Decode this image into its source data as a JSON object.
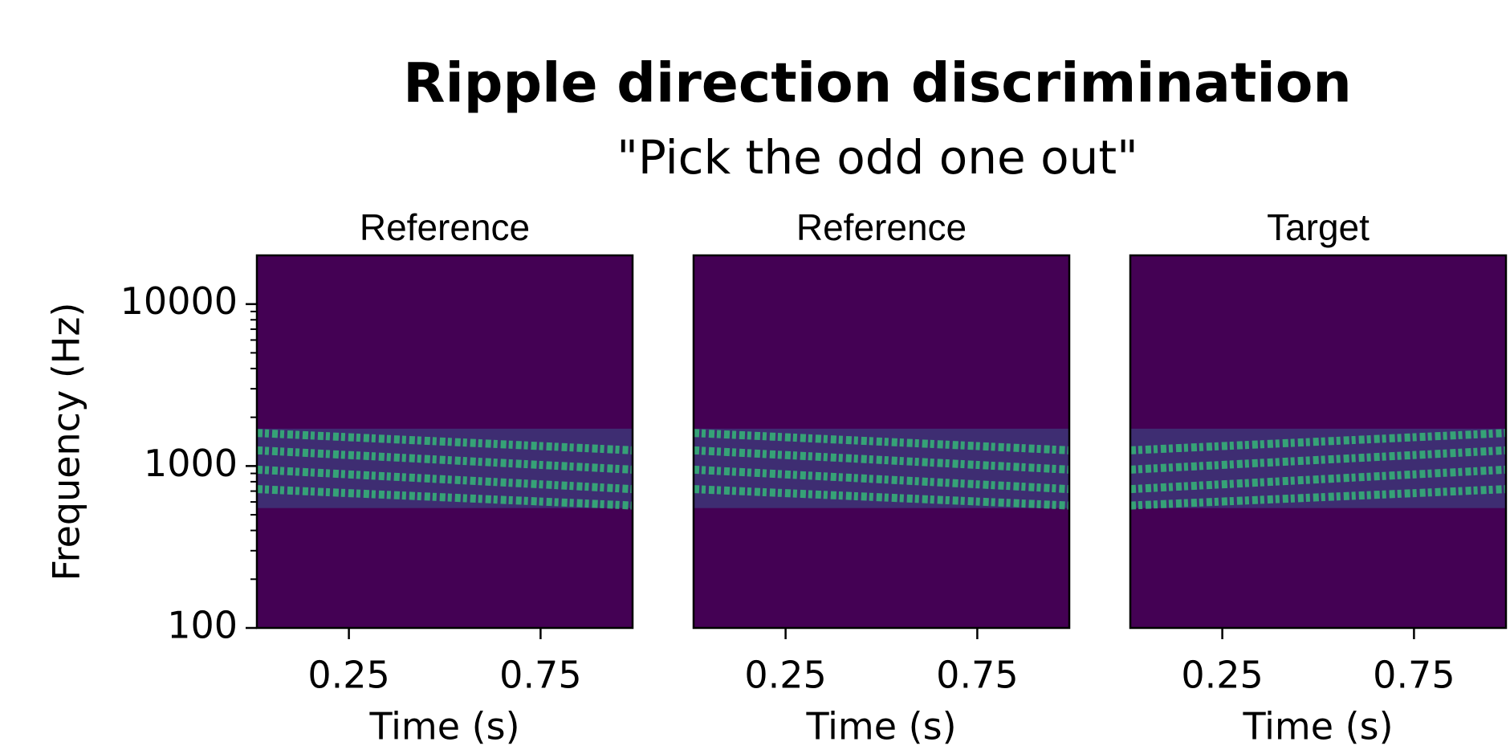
{
  "title": "Ripple direction discrimination",
  "subtitle": "\"Pick the odd one out\"",
  "chart_data": [
    {
      "type": "spectrogram",
      "title": "Reference",
      "xlabel": "Time (s)",
      "ylabel": "Frequency (Hz)",
      "xlim": [
        0.01,
        0.99
      ],
      "xticks": [
        0.25,
        0.75
      ],
      "ylim": [
        100,
        20000
      ],
      "yticks": [
        100,
        1000,
        10000
      ],
      "yminorticks": [
        200,
        300,
        400,
        500,
        600,
        700,
        800,
        900,
        2000,
        3000,
        4000,
        5000,
        6000,
        7000,
        8000,
        9000
      ],
      "yscale": "log",
      "background": "#440154",
      "band_color": "#3b528b",
      "ripple_color": "#35b779",
      "band": [
        550,
        1700
      ],
      "ripples": [
        [
          1600,
          1250
        ],
        [
          1250,
          950
        ],
        [
          950,
          720
        ],
        [
          720,
          570
        ]
      ]
    },
    {
      "type": "spectrogram",
      "title": "Reference",
      "xlabel": "Time (s)",
      "xlim": [
        0.01,
        0.99
      ],
      "xticks": [
        0.25,
        0.75
      ],
      "ylim": [
        100,
        20000
      ],
      "yscale": "log",
      "background": "#440154",
      "band_color": "#3b528b",
      "ripple_color": "#35b779",
      "band": [
        550,
        1700
      ],
      "ripples": [
        [
          1600,
          1250
        ],
        [
          1250,
          950
        ],
        [
          950,
          720
        ],
        [
          720,
          570
        ]
      ]
    },
    {
      "type": "spectrogram",
      "title": "Target",
      "xlabel": "Time (s)",
      "xlim": [
        0.01,
        0.99
      ],
      "xticks": [
        0.25,
        0.75
      ],
      "ylim": [
        100,
        20000
      ],
      "yscale": "log",
      "background": "#440154",
      "band_color": "#3b528b",
      "ripple_color": "#35b779",
      "band": [
        550,
        1700
      ],
      "ripples": [
        [
          1250,
          1600
        ],
        [
          950,
          1250
        ],
        [
          720,
          950
        ],
        [
          570,
          720
        ]
      ]
    }
  ]
}
